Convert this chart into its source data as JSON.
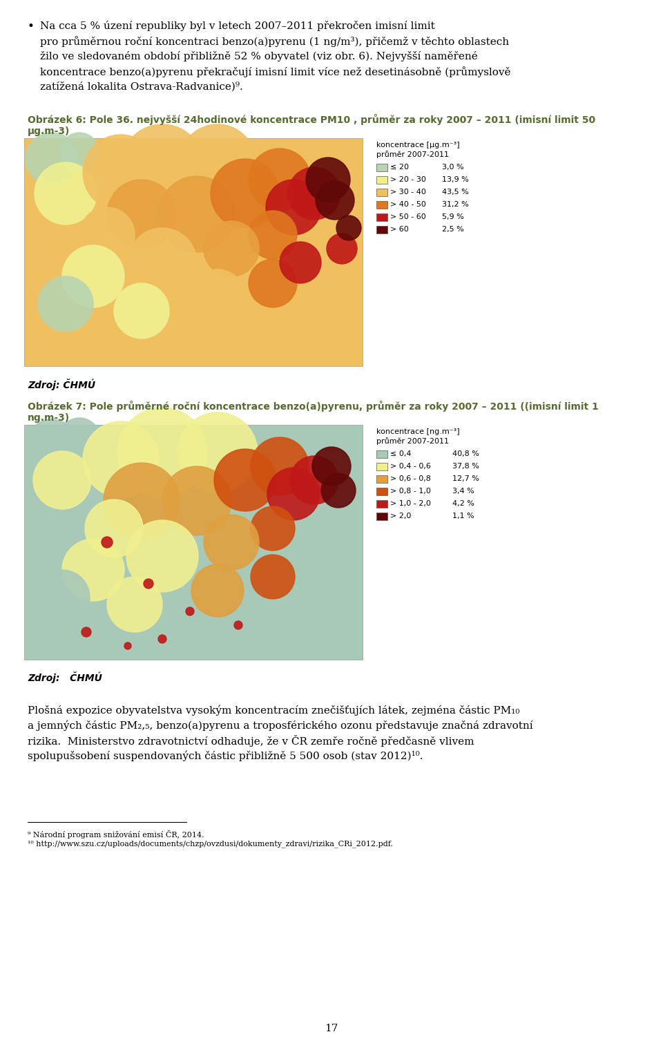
{
  "page_bg": "#ffffff",
  "text_color": "#000000",
  "caption_color": "#556b2f",
  "bullet_line1": "Na cca 5 % úzení republiky byl v letech 2007–2011 překročen imisní limit",
  "bullet_line2": "pro průměrnou roční koncentraci benzo(a)pyrenu (1 ng/m³), přičemž v těchto oblastech",
  "bullet_line3": "žilo ve sledovaném období přibližně 52 % obyvatel (viz obr. 6). Nejvyšší naměřené",
  "bullet_line4": "koncentrace benzo(a)pyrenu překračují imisní limit více než desetinásobně (průmyslově",
  "bullet_line5": "zatížená lokalita Ostrava-Radvanice)⁹.",
  "caption1_line1": "Obrázek 6: Pole 36. nejvyšší 24hodinové koncentrace PM10 , průměr za roky 2007 – 2011 (imisní limit 50",
  "caption1_line2": "µg.m-3)",
  "legend1_title1": "koncentrace [µg.m⁻³]",
  "legend1_title2": "průměr 2007-2011",
  "legend1_items": [
    [
      "≤ 20",
      "3,0 %",
      "#b8d4b0"
    ],
    [
      "> 20 - 30",
      "13,9 %",
      "#f0f090"
    ],
    [
      "> 30 - 40",
      "43,5 %",
      "#f0c060"
    ],
    [
      "> 40 - 50",
      "31,2 %",
      "#e07820"
    ],
    [
      "> 50 - 60",
      "5,9 %",
      "#c01818"
    ],
    [
      "> 60",
      "2,5 %",
      "#600808"
    ]
  ],
  "source1": "Zdroj: ČHMÚ",
  "caption2_line1": "Obrázek 7: Pole průměrné roční koncentrace benzo(a)pyrenu, průměr za roky 2007 – 2011 ((imisní limit 1",
  "caption2_line2": "ng.m-3)",
  "legend2_title1": "koncentrace [ng.m⁻³]",
  "legend2_title2": "průměr 2007-2011",
  "legend2_items": [
    [
      "≤ 0,4",
      "40,8 %",
      "#a8c8b8"
    ],
    [
      "> 0,4 - 0,6",
      "37,8 %",
      "#f0f090"
    ],
    [
      "> 0,6 - 0,8",
      "12,7 %",
      "#e0a040"
    ],
    [
      "> 0,8 - 1,0",
      "3,4 %",
      "#d05010"
    ],
    [
      "> 1,0 - 2,0",
      "4,2 %",
      "#c01818"
    ],
    [
      "> 2,0",
      "1,1 %",
      "#600808"
    ]
  ],
  "source2": "Zdroj:   ČHMÚ",
  "body_line1": "Plošná expozice obyvatelstva vysokým koncentracím znečišťujích látek, zejména částic PM₁₀",
  "body_line2": "a jemných částic PM₂,₅, benzo(a)pyrenu a troposférického ozonu představuje značná zdravotní",
  "body_line3": "rizika.  Ministerstvo zdravotnictví odhaduje, že v ČR zemře ročně předčasně vlivem",
  "body_line4": "spolupušsobení suspendovaných částic přibližně 5 500 osob (stav 2012)¹⁰.",
  "footnote1": "⁹ Národní program snižování emisí ČR, 2014.",
  "footnote2": "¹⁰ http://www.szu.cz/uploads/documents/chzp/ovzdusi/dokumenty_zdravi/rizika_CRi_2012.pdf.",
  "page_number": "17",
  "map1_base": "#f0c060",
  "map2_base": "#a8c8b8"
}
